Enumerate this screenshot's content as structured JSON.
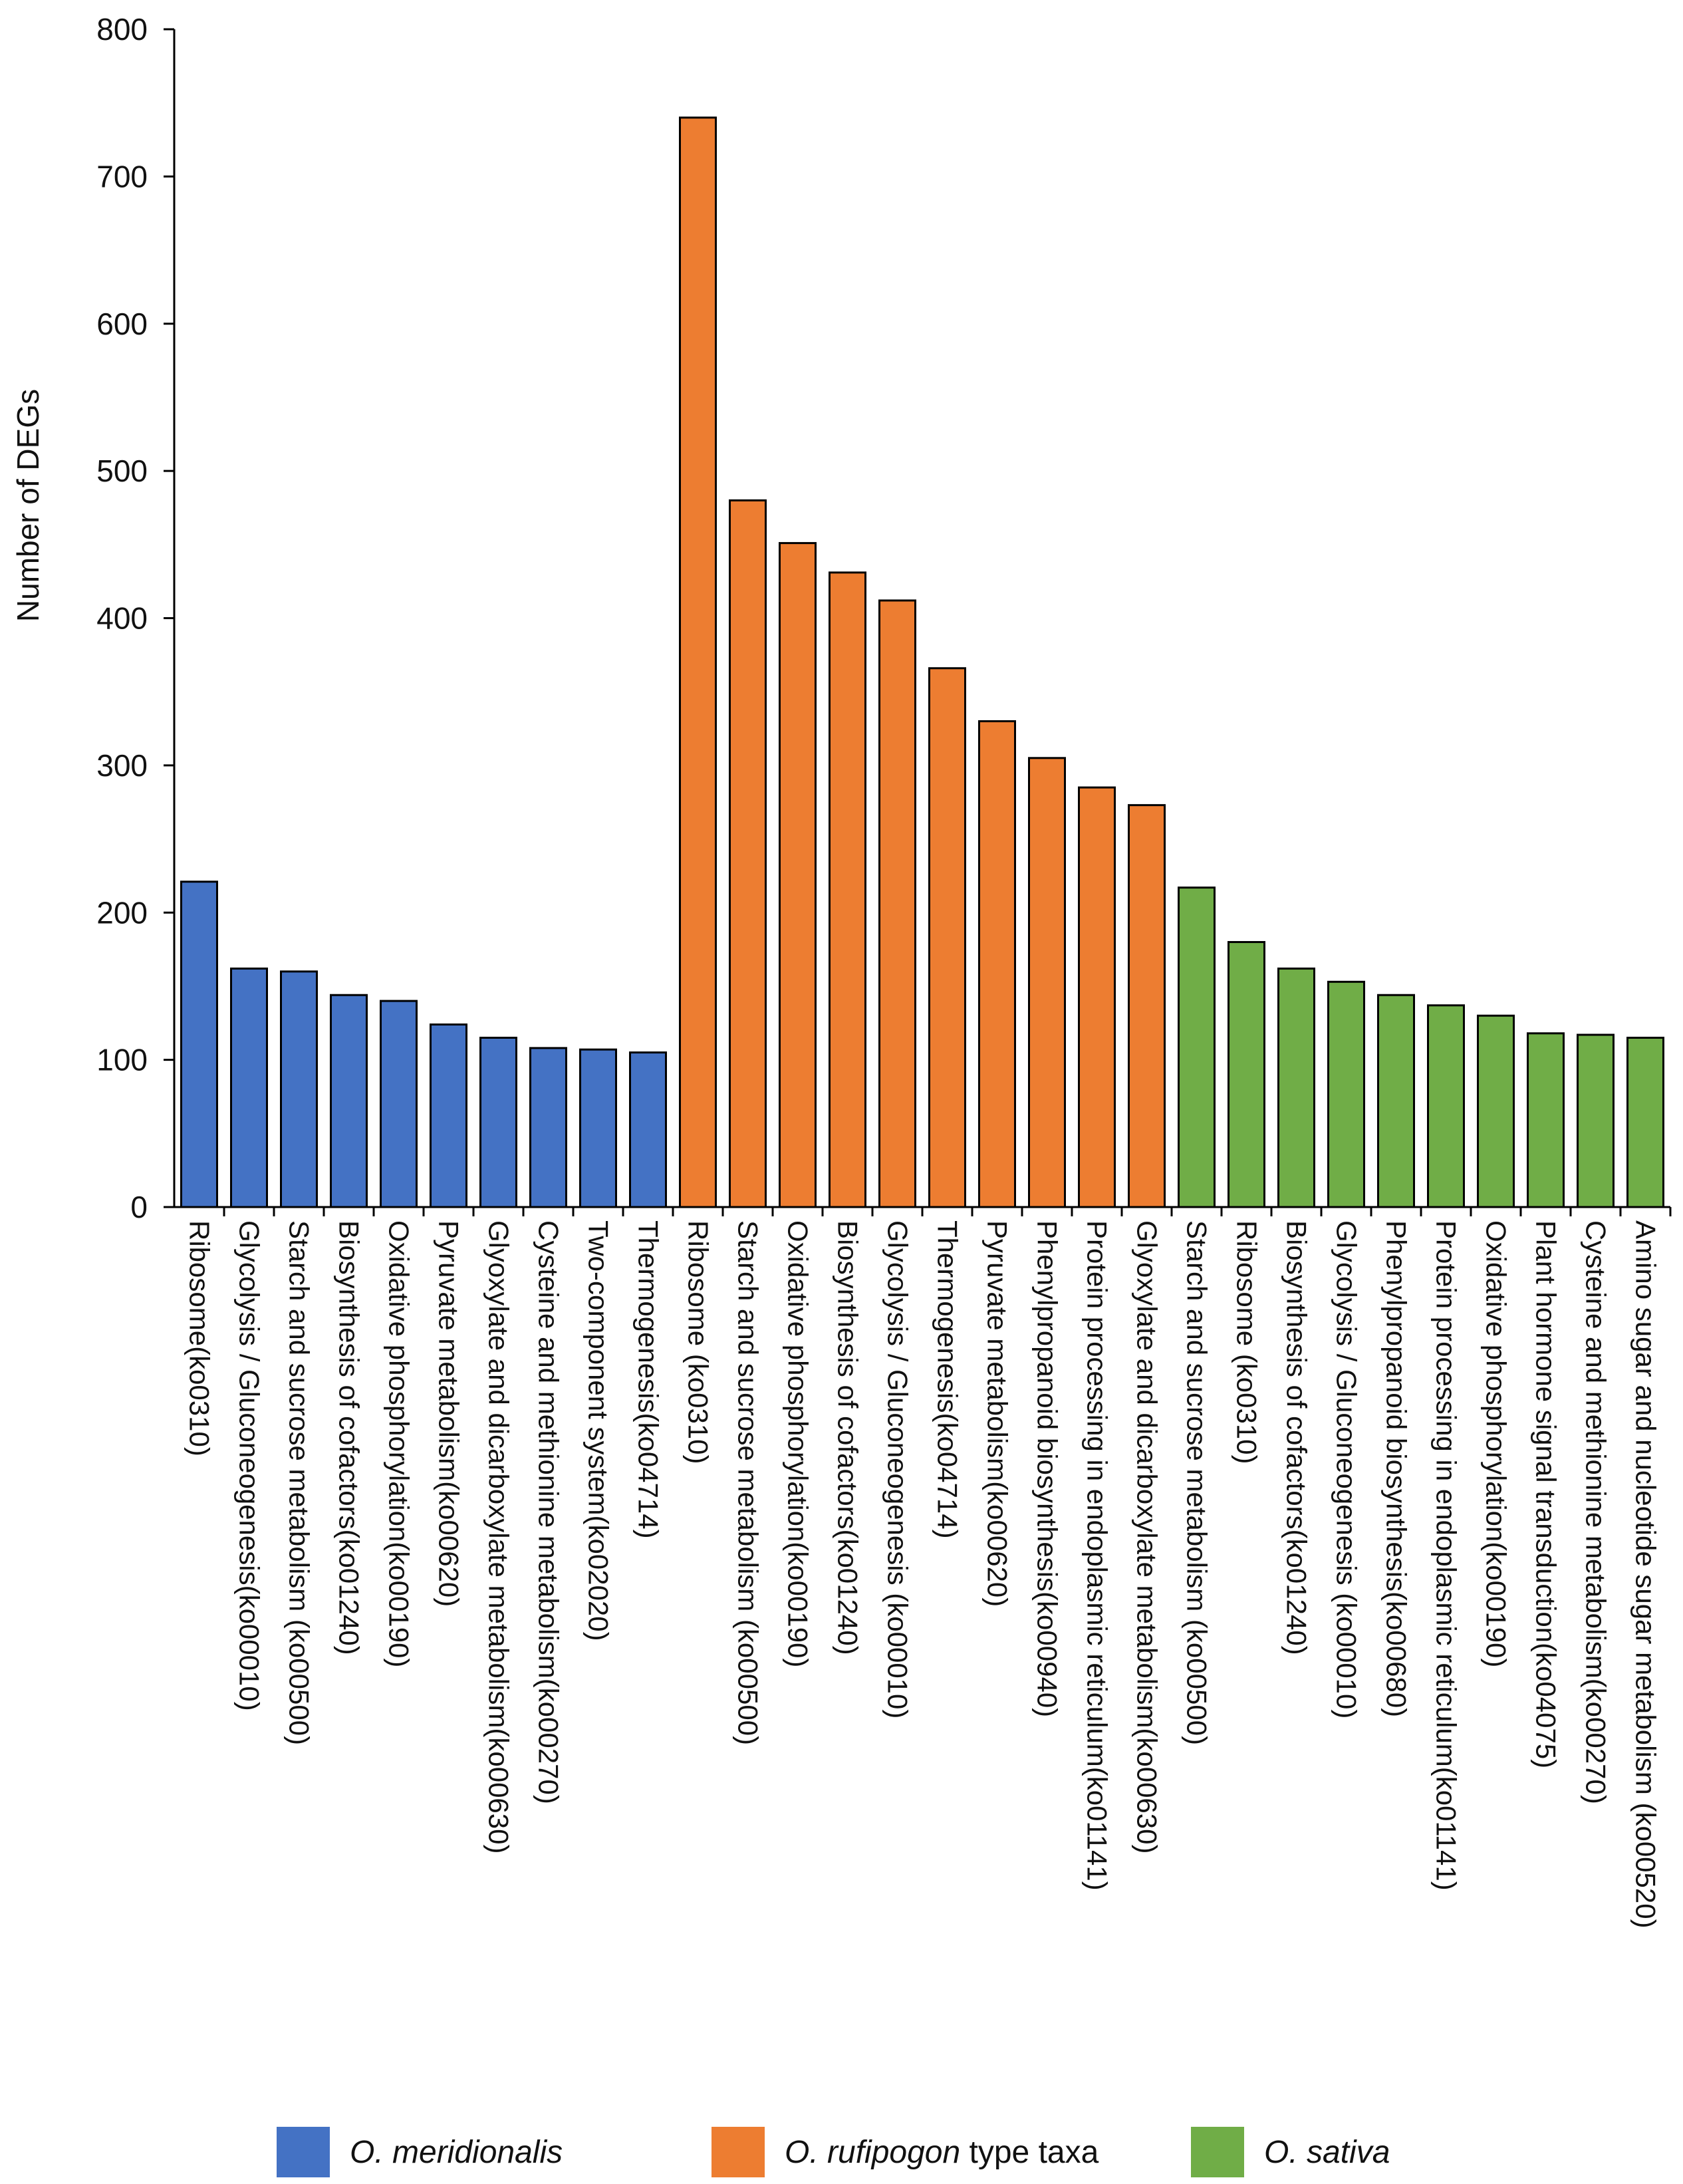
{
  "chart_data": {
    "type": "bar",
    "title": "",
    "xlabel": "",
    "ylabel": "Number of DEGs",
    "ylim": [
      0,
      800
    ],
    "yticks": [
      0,
      100,
      200,
      300,
      400,
      500,
      600,
      700,
      800
    ],
    "grid": false,
    "legend_position": "bottom",
    "groups": [
      {
        "name": "O. meridionalis",
        "name_italic": "O. meridionalis",
        "name_suffix": "",
        "color": "#4472C4",
        "categories": [
          "Ribosome(ko0310)",
          "Glycolysis / Gluconeogenesis(ko00010)",
          "Starch and sucrose metabolism (ko00500)",
          "Biosynthesis of cofactors(ko01240)",
          "Oxidative phosphorylation(ko00190)",
          "Pyruvate metabolism(ko00620)",
          "Glyoxylate and dicarboxylate metabolism(ko00630)",
          "Cysteine and methionine metabolism(ko00270)",
          "Two-component system(ko02020)",
          "Thermogenesis(ko04714)"
        ],
        "values": [
          221,
          162,
          160,
          144,
          140,
          124,
          115,
          108,
          107,
          105
        ]
      },
      {
        "name": "O. rufipogon type taxa",
        "name_italic": "O. rufipogon",
        "name_suffix": " type taxa",
        "color": "#ED7D31",
        "categories": [
          "Ribosome (ko0310)",
          "Starch and sucrose metabolism (ko00500)",
          "Oxidative phosphorylation(ko00190)",
          "Biosynthesis of cofactors(ko01240)",
          "Glycolysis / Gluconeogenesis (ko00010)",
          "Thermogenesis(ko04714)",
          "Pyruvate metabolism(ko00620)",
          "Phenylpropanoid biosynthesis(ko00940)",
          "Protein processing in endoplasmic reticulum(ko01141)",
          "Glyoxylate and dicarboxylate metabolism(ko00630)"
        ],
        "values": [
          740,
          480,
          451,
          431,
          412,
          366,
          330,
          305,
          285,
          273
        ]
      },
      {
        "name": "O. sativa",
        "name_italic": "O. sativa",
        "name_suffix": "",
        "color": "#70AD47",
        "categories": [
          "Starch and sucrose metabolism (ko00500)",
          "Ribosome (ko0310)",
          "Biosynthesis of cofactors(ko01240)",
          "Glycolysis / Gluconeogenesis (ko00010)",
          "Phenylpropanoid biosynthesis(ko00680)",
          "Protein processing in endoplasmic reticulum(ko01141)",
          "Oxidative phosphorylation(ko00190)",
          "Plant hormone signal transduction(ko04075)",
          "Cysteine and methionine metabolism(ko00270)",
          "Amino sugar and nucleotide sugar metabolism (ko00520)"
        ],
        "values": [
          217,
          180,
          162,
          153,
          144,
          137,
          130,
          118,
          117,
          115
        ]
      }
    ]
  }
}
